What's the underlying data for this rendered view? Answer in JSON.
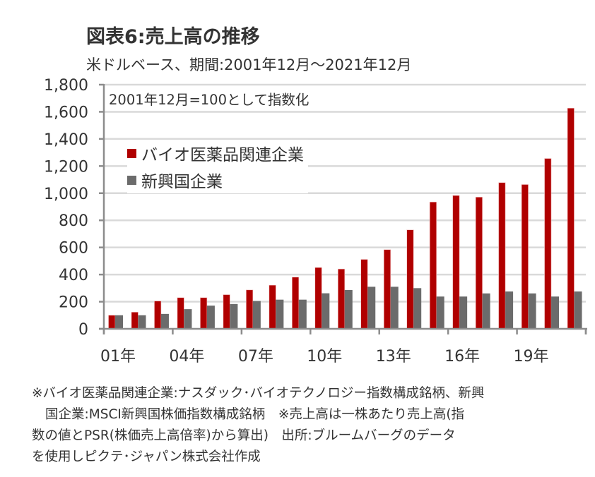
{
  "header": {
    "title": "図表6:売上高の推移",
    "subtitle": "米ドルベース、期間:2001年12月～2021年12月"
  },
  "annotation": "2001年12月=100として指数化",
  "colors": {
    "bio": "#b00000",
    "emerging": "#6b6b6b",
    "grid": "#d9d9d9",
    "axis": "#8c8c8c"
  },
  "chart_data": {
    "type": "bar",
    "title": "図表6:売上高の推移",
    "subtitle": "米ドルベース、期間:2001年12月～2021年12月",
    "annotation": "2001年12月=100として指数化",
    "xlabel": "",
    "ylabel": "",
    "ylim": [
      0,
      1800
    ],
    "yticks": [
      0,
      200,
      400,
      600,
      800,
      1000,
      1200,
      1400,
      1600,
      1800
    ],
    "ytick_labels": [
      "0",
      "200",
      "400",
      "600",
      "800",
      "1,000",
      "1,200",
      "1,400",
      "1,600",
      "1,800"
    ],
    "grid": true,
    "legend_position": "top-left",
    "categories": [
      "01",
      "02",
      "03",
      "04",
      "05",
      "06",
      "07",
      "08",
      "09",
      "10",
      "11",
      "12",
      "13",
      "14",
      "15",
      "16",
      "17",
      "18",
      "19",
      "20",
      "21"
    ],
    "xtick_labels": [
      "01年",
      "04年",
      "07年",
      "10年",
      "13年",
      "16年",
      "19年"
    ],
    "xtick_label_indices": [
      0,
      3,
      6,
      9,
      12,
      15,
      18
    ],
    "series": [
      {
        "name": "バイオ医薬品関連企業",
        "color": "#b00000",
        "values": [
          100,
          123,
          205,
          230,
          230,
          252,
          287,
          322,
          381,
          452,
          441,
          512,
          584,
          730,
          935,
          983,
          971,
          1078,
          1064,
          1256,
          1627
        ]
      },
      {
        "name": "新興国企業",
        "color": "#6b6b6b",
        "values": [
          100,
          100,
          110,
          145,
          171,
          183,
          205,
          215,
          215,
          262,
          286,
          310,
          310,
          300,
          238,
          238,
          261,
          275,
          261,
          238,
          275
        ]
      }
    ]
  },
  "footnote": {
    "lines": [
      "※バイオ医薬品関連企業:ナスダック･バイオテクノロジー指数構成銘柄、新興",
      "国企業:MSCI新興国株価指数構成銘柄　※売上高は一株あたり売上高(指",
      "数の値とPSR(株価売上高倍率)から算出)　出所:ブルームバーグのデータ",
      "を使用しピクテ･ジャパン株式会社作成"
    ]
  }
}
